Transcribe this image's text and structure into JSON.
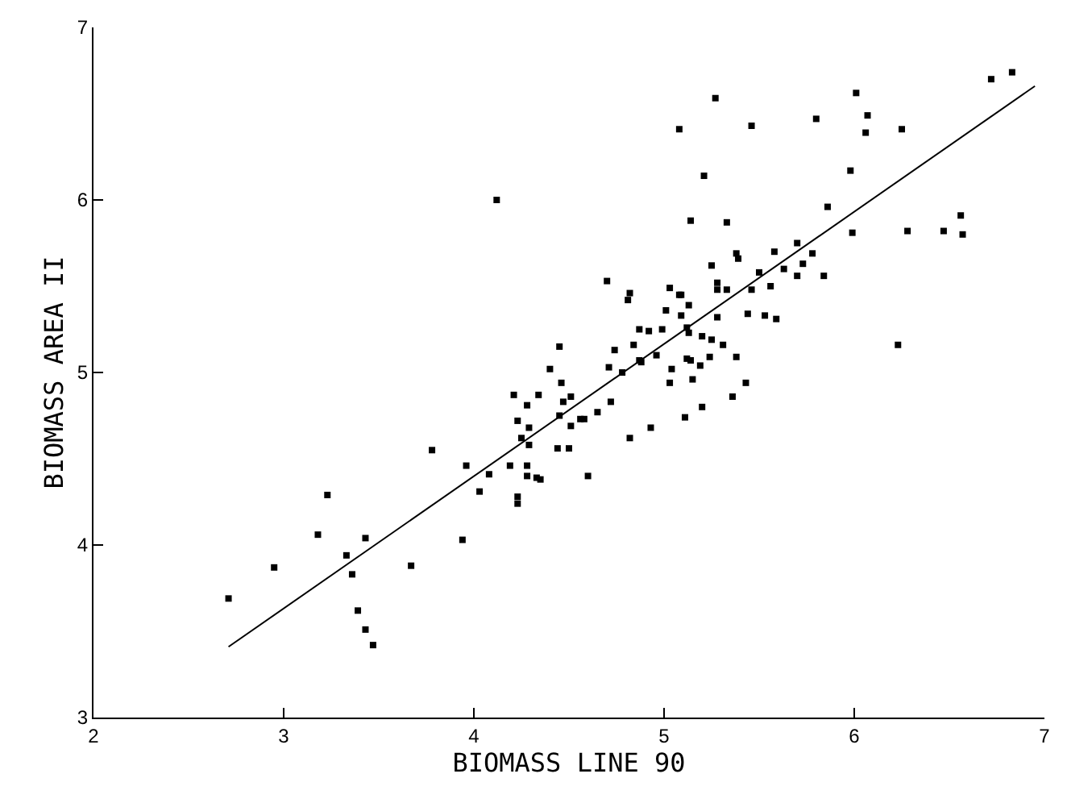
{
  "chart_data": {
    "type": "scatter",
    "xlabel": "BIOMASS LINE 90",
    "ylabel": "BIOMASS AREA II",
    "xlim": [
      2,
      7
    ],
    "ylim": [
      3,
      7
    ],
    "xticks": [
      2,
      3,
      4,
      5,
      6,
      7
    ],
    "yticks": [
      3,
      4,
      5,
      6,
      7
    ],
    "marker": "square",
    "line_style": "solid",
    "series": [
      {
        "color": "#000000",
        "x": [
          2.71,
          2.95,
          3.18,
          3.23,
          3.33,
          3.36,
          3.43,
          3.39,
          3.43,
          3.47,
          3.67,
          3.78,
          3.94,
          3.96,
          4.08,
          4.19,
          4.28,
          4.28,
          4.33,
          4.35,
          4.03,
          4.23,
          4.23,
          4.6,
          4.7,
          4.82,
          4.81,
          5.03,
          5.08,
          5.01,
          4.87,
          4.92,
          4.99,
          4.45,
          4.74,
          4.84,
          4.4,
          4.71,
          4.78,
          4.87,
          4.88,
          4.96,
          5.04,
          5.03,
          4.46,
          4.21,
          4.34,
          4.28,
          4.47,
          4.51,
          4.72,
          4.23,
          4.29,
          4.45,
          4.51,
          4.56,
          4.58,
          4.65,
          4.25,
          4.29,
          4.44,
          4.5,
          4.82,
          4.93,
          6.72,
          6.83,
          5.27,
          6.01,
          6.07,
          5.08,
          5.46,
          5.8,
          6.06,
          6.25,
          5.21,
          5.98,
          5.14,
          5.33,
          5.86,
          6.56,
          6.57,
          5.99,
          6.28,
          6.47,
          5.58,
          5.7,
          5.78,
          5.25,
          5.38,
          5.39,
          5.63,
          5.73,
          5.7,
          5.84,
          5.5,
          5.28,
          5.28,
          5.33,
          5.46,
          5.56,
          5.09,
          5.13,
          5.09,
          5.28,
          5.44,
          5.53,
          5.59,
          5.12,
          5.13,
          5.2,
          5.25,
          5.31,
          5.12,
          5.14,
          5.19,
          5.24,
          5.38,
          5.15,
          5.43,
          5.36,
          5.2,
          5.11,
          6.23,
          4.12
        ],
        "values": [
          3.69,
          3.87,
          4.06,
          4.29,
          3.94,
          3.83,
          4.04,
          3.62,
          3.51,
          3.42,
          3.88,
          4.55,
          4.03,
          4.46,
          4.41,
          4.46,
          4.46,
          4.4,
          4.39,
          4.38,
          4.31,
          4.28,
          4.24,
          4.4,
          5.53,
          5.46,
          5.42,
          5.49,
          5.45,
          5.36,
          5.25,
          5.24,
          5.25,
          5.15,
          5.13,
          5.16,
          5.02,
          5.03,
          5.0,
          5.07,
          5.06,
          5.1,
          5.02,
          4.94,
          4.94,
          4.87,
          4.87,
          4.81,
          4.83,
          4.86,
          4.83,
          4.72,
          4.68,
          4.75,
          4.69,
          4.73,
          4.73,
          4.77,
          4.62,
          4.58,
          4.56,
          4.56,
          4.62,
          4.68,
          6.7,
          6.74,
          6.59,
          6.62,
          6.49,
          6.41,
          6.43,
          6.47,
          6.39,
          6.41,
          6.14,
          6.17,
          5.88,
          5.87,
          5.96,
          5.91,
          5.8,
          5.81,
          5.82,
          5.82,
          5.7,
          5.75,
          5.69,
          5.62,
          5.69,
          5.66,
          5.6,
          5.63,
          5.56,
          5.56,
          5.58,
          5.52,
          5.48,
          5.48,
          5.48,
          5.5,
          5.45,
          5.39,
          5.33,
          5.32,
          5.34,
          5.33,
          5.31,
          5.26,
          5.23,
          5.21,
          5.19,
          5.16,
          5.08,
          5.07,
          5.04,
          5.09,
          5.09,
          4.96,
          4.94,
          4.86,
          4.8,
          4.74,
          5.16,
          6.0
        ]
      },
      {
        "type": "line",
        "marker": "none",
        "color": "#000000",
        "x": [
          2.71,
          6.95
        ],
        "values": [
          3.41,
          6.66
        ]
      }
    ]
  }
}
